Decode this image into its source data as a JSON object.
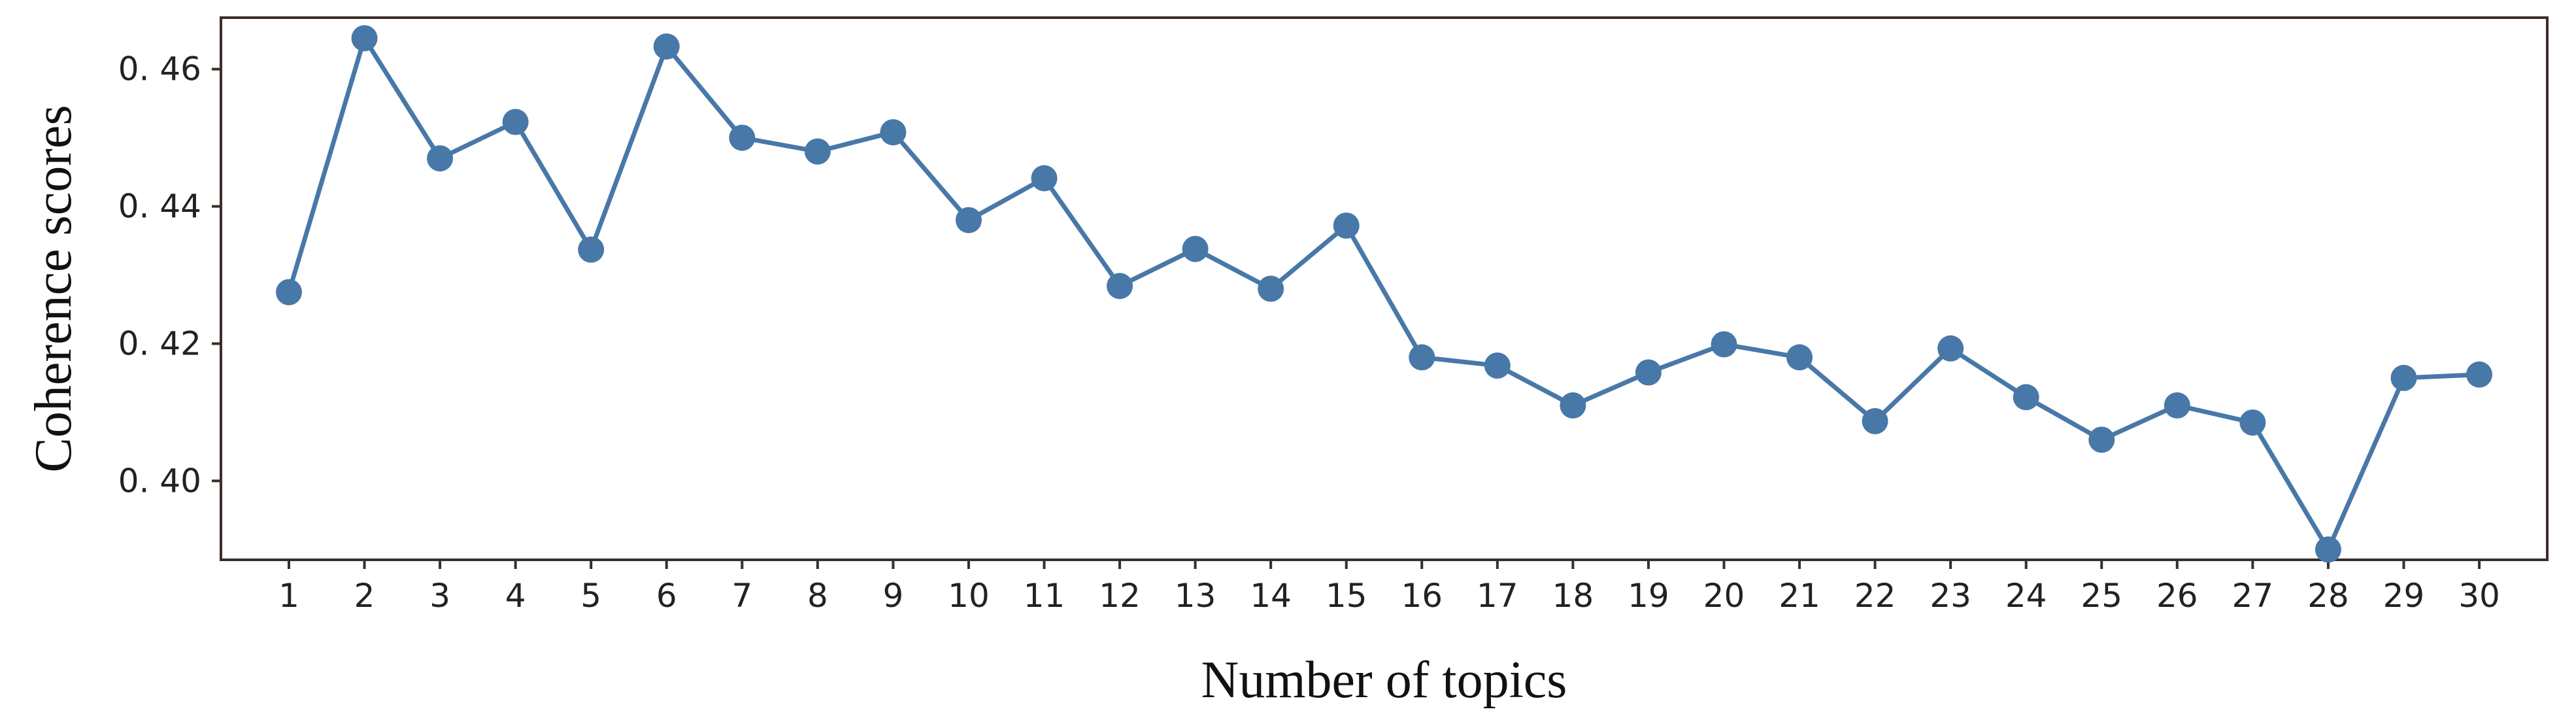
{
  "chart_data": {
    "type": "line",
    "xlabel": "Number of topics",
    "ylabel": "Coherence scores",
    "title": "",
    "x": [
      1,
      2,
      3,
      4,
      5,
      6,
      7,
      8,
      9,
      10,
      11,
      12,
      13,
      14,
      15,
      16,
      17,
      18,
      19,
      20,
      21,
      22,
      23,
      24,
      25,
      26,
      27,
      28,
      29,
      30
    ],
    "series": [
      {
        "values": [
          0.4275,
          0.4645,
          0.447,
          0.4523,
          0.4337,
          0.4633,
          0.45,
          0.448,
          0.4508,
          0.438,
          0.4441,
          0.4284,
          0.4338,
          0.428,
          0.4372,
          0.418,
          0.4168,
          0.411,
          0.4158,
          0.4199,
          0.418,
          0.4087,
          0.4193,
          0.4122,
          0.406,
          0.411,
          0.4085,
          0.39,
          0.415,
          0.4155
        ],
        "color": "#4878a8"
      }
    ],
    "xticks": [
      "1",
      "2",
      "3",
      "4",
      "5",
      "6",
      "7",
      "8",
      "9",
      "10",
      "11",
      "12",
      "13",
      "14",
      "15",
      "16",
      "17",
      "18",
      "19",
      "20",
      "21",
      "22",
      "23",
      "24",
      "25",
      "26",
      "27",
      "28",
      "29",
      "30"
    ],
    "yticks": [
      "0. 40",
      "0. 42",
      "0. 44",
      "0. 46"
    ],
    "ytick_values": [
      0.4,
      0.42,
      0.44,
      0.46
    ],
    "ylim": [
      0.3885,
      0.4675
    ],
    "xlim": [
      0.1,
      30.9
    ],
    "grid": false,
    "legend": "none"
  }
}
